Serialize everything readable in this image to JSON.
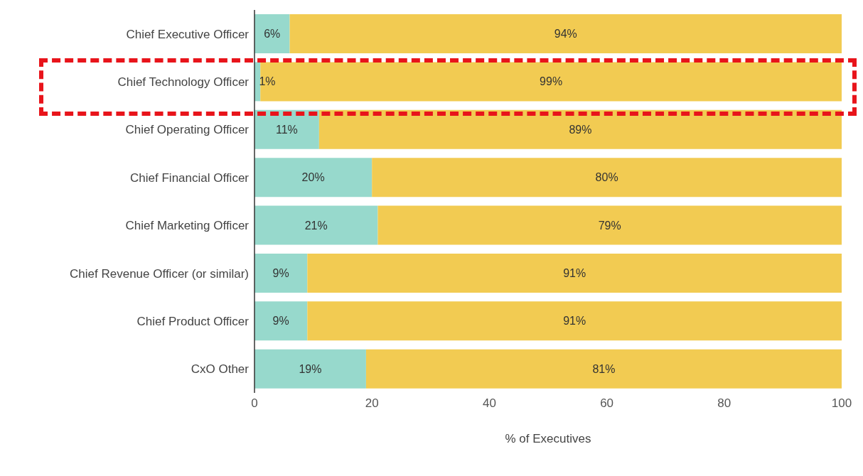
{
  "chart_data": {
    "type": "bar",
    "orientation": "horizontal",
    "stacked": true,
    "xlabel": "% of Executives",
    "categories": [
      "Chief Executive Officer",
      "Chief Technology Officer",
      "Chief Operating Officer",
      "Chief Financial Officer",
      "Chief Marketing Officer",
      "Chief Revenue Officer (or similar)",
      "Chief Product Officer",
      "CxO Other"
    ],
    "series": [
      {
        "color": "#97d9cc",
        "values": [
          6,
          1,
          11,
          20,
          21,
          9,
          9,
          19
        ],
        "value_labels": [
          "6%",
          "1%",
          "11%",
          "20%",
          "21%",
          "9%",
          "9%",
          "19%"
        ]
      },
      {
        "color": "#f2cb52",
        "values": [
          94,
          99,
          89,
          80,
          79,
          91,
          91,
          81
        ],
        "value_labels": [
          "94%",
          "99%",
          "89%",
          "80%",
          "79%",
          "91%",
          "91%",
          "81%"
        ]
      }
    ],
    "xlim": [
      0,
      100
    ],
    "xticks": [
      0,
      20,
      40,
      60,
      80,
      100
    ],
    "grid": false,
    "legend": false
  }
}
